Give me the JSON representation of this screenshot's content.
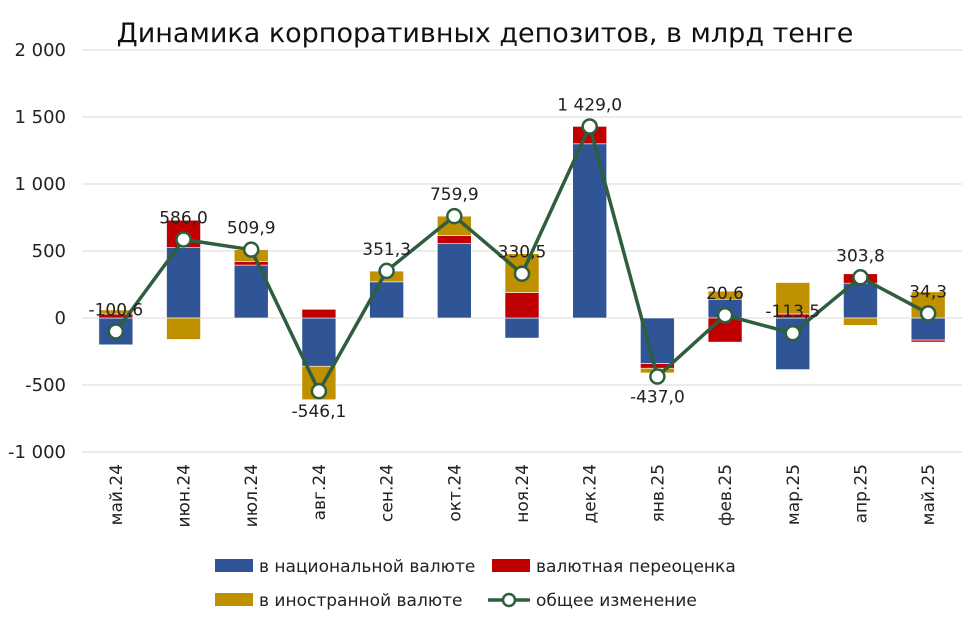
{
  "chart_data": {
    "type": "bar",
    "title": "Динамика корпоративных депозитов, в млрд тенге",
    "xlabel": "",
    "ylabel": "",
    "ylim": [
      -1000,
      2000
    ],
    "yticks": [
      {
        "value": 2000,
        "label": "2 000"
      },
      {
        "value": 1500,
        "label": "1 500"
      },
      {
        "value": 1000,
        "label": "1 000"
      },
      {
        "value": 500,
        "label": "500"
      },
      {
        "value": 0,
        "label": "0"
      },
      {
        "value": -500,
        "label": "-500"
      },
      {
        "value": -1000,
        "label": "-1 000"
      }
    ],
    "categories": [
      "май.24",
      "июн.24",
      "июл.24",
      "авг.24",
      "сен.24",
      "окт.24",
      "ноя.24",
      "дек.24",
      "янв.25",
      "фев.25",
      "мар.25",
      "апр.25",
      "май.25"
    ],
    "series": [
      {
        "name": "в национальной валюте",
        "kind": "bar",
        "color": "#2f5597",
        "values": [
          -200,
          525,
          395,
          -360,
          270,
          555,
          -150,
          1300,
          -340,
          140,
          -385,
          260,
          -165
        ]
      },
      {
        "name": "валютная переоценка",
        "kind": "bar",
        "color": "#c00000",
        "values": [
          30,
          205,
          25,
          65,
          0,
          60,
          190,
          130,
          -35,
          -180,
          30,
          70,
          -15
        ]
      },
      {
        "name": "в иностранной валюте",
        "kind": "bar",
        "color": "#bf9000",
        "values": [
          30,
          -160,
          90,
          -250,
          80,
          145,
          290,
          0,
          -35,
          60,
          235,
          -55,
          195
        ]
      },
      {
        "name": "общее изменение",
        "kind": "line",
        "color": "#2e5e3e",
        "values": [
          -100.6,
          586.0,
          509.9,
          -546.1,
          351.3,
          759.9,
          330.5,
          1429.0,
          -437.0,
          20.6,
          -113.5,
          303.8,
          34.3
        ],
        "labels": [
          "-100,6",
          "586,0",
          "509,9",
          "-546,1",
          "351,3",
          "759,9",
          "330,5",
          "1 429,0",
          "-437,0",
          "20,6",
          "-113,5",
          "303,8",
          "34,3"
        ]
      }
    ],
    "legend_position": "bottom",
    "grid": "horizontal"
  }
}
